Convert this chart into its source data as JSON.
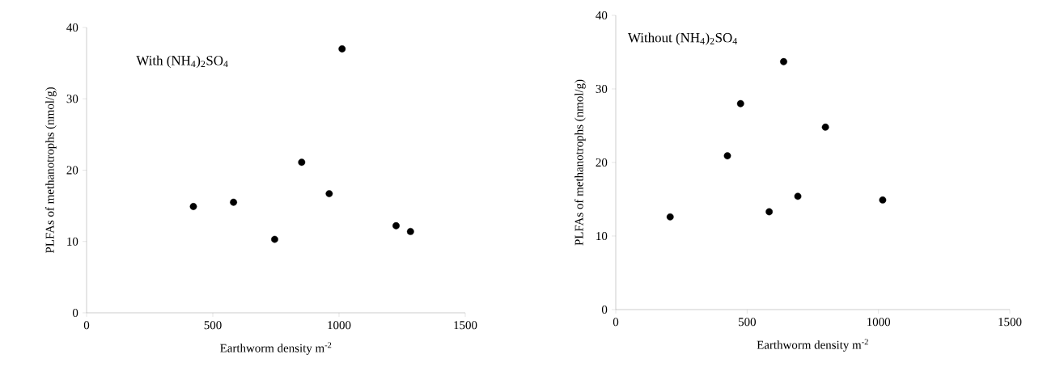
{
  "chart_data": [
    {
      "type": "scatter",
      "x": [
        423,
        582,
        745,
        852,
        961,
        1012,
        1226,
        1283
      ],
      "values": [
        14.9,
        15.5,
        10.3,
        21.1,
        16.7,
        37.0,
        12.2,
        11.4
      ],
      "color": "#000000",
      "marker": "circle",
      "xlim": [
        0,
        1500
      ],
      "ylim": [
        0,
        40
      ],
      "xticks": [
        0,
        500,
        1000,
        1500
      ],
      "yticks": [
        0,
        10,
        20,
        30,
        40
      ],
      "xlabel": "Earthworm  density  m$^{-2}$",
      "ylabel": "PLFAs of methanotrophs  (nmol/g)",
      "annotations": [
        "With (NH$_{4}$)$_{2}$SO$_{4}$"
      ]
    },
    {
      "type": "scatter",
      "x": [
        207,
        425,
        475,
        584,
        639,
        693,
        798,
        1016
      ],
      "values": [
        12.6,
        20.9,
        28.0,
        13.3,
        33.7,
        15.4,
        24.8,
        14.9
      ],
      "color": "#000000",
      "marker": "circle",
      "xlim": [
        0,
        1500
      ],
      "ylim": [
        0,
        40
      ],
      "xticks": [
        0,
        500,
        1000,
        1500
      ],
      "yticks": [
        0,
        10,
        20,
        30,
        40
      ],
      "xlabel": "Earthworm  density  m$^{-2}$",
      "ylabel": "PLFAs of methanotrophs  (nmol/g)",
      "annotations": [
        "Without (NH$_{4}$)$_{2}$SO$_{4}$"
      ]
    }
  ]
}
